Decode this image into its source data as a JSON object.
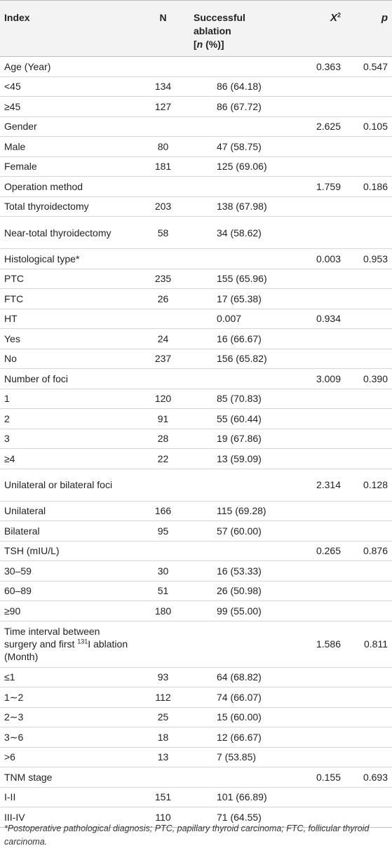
{
  "headers": {
    "index": "Index",
    "n": "N",
    "success_l1": "Successful",
    "success_l2": "ablation",
    "success_l3_open": "[",
    "success_l3_n": "n",
    "success_l3_close": " (%)]",
    "chi_sym": "X",
    "chi_sup": "2",
    "p": "p"
  },
  "rows": [
    {
      "label": "Age (Year)",
      "n": "",
      "success": "",
      "chi": "0.363",
      "p": "0.547"
    },
    {
      "label": "<45",
      "n": "134",
      "success": "86 (64.18)",
      "chi": "",
      "p": ""
    },
    {
      "label": "≥45",
      "n": "127",
      "success": "86 (67.72)",
      "chi": "",
      "p": ""
    },
    {
      "label": "Gender",
      "n": "",
      "success": "",
      "chi": "2.625",
      "p": "0.105"
    },
    {
      "label": "Male",
      "n": "80",
      "success": "47 (58.75)",
      "chi": "",
      "p": ""
    },
    {
      "label": "Female",
      "n": "181",
      "success": "125 (69.06)",
      "chi": "",
      "p": ""
    },
    {
      "label": "Operation method",
      "n": "",
      "success": "",
      "chi": "1.759",
      "p": "0.186"
    },
    {
      "label": "Total thyroidectomy",
      "n": "203",
      "success": "138 (67.98)",
      "chi": "",
      "p": ""
    },
    {
      "label": "Near-total thyroidectomy",
      "n": "58",
      "success": "34 (58.62)",
      "chi": "",
      "p": ""
    },
    {
      "label": "Histological type*",
      "n": "",
      "success": "",
      "chi": "0.003",
      "p": "0.953"
    },
    {
      "label": "PTC",
      "n": "235",
      "success": "155 (65.96)",
      "chi": "",
      "p": ""
    },
    {
      "label": "FTC",
      "n": "26",
      "success": "17 (65.38)",
      "chi": "",
      "p": ""
    },
    {
      "label": "HT",
      "n": "",
      "success": "0.007",
      "chi": "0.934",
      "p": ""
    },
    {
      "label": "Yes",
      "n": "24",
      "success": "16 (66.67)",
      "chi": "",
      "p": ""
    },
    {
      "label": "No",
      "n": "237",
      "success": "156 (65.82)",
      "chi": "",
      "p": ""
    },
    {
      "label": "Number of foci",
      "n": "",
      "success": "",
      "chi": "3.009",
      "p": "0.390"
    },
    {
      "label": "1",
      "n": "120",
      "success": "85 (70.83)",
      "chi": "",
      "p": ""
    },
    {
      "label": "2",
      "n": "91",
      "success": "55 (60.44)",
      "chi": "",
      "p": ""
    },
    {
      "label": "3",
      "n": "28",
      "success": "19 (67.86)",
      "chi": "",
      "p": ""
    },
    {
      "label": "≥4",
      "n": "22",
      "success": "13 (59.09)",
      "chi": "",
      "p": ""
    },
    {
      "label": "Unilateral or bilateral foci",
      "n": "",
      "success": "",
      "chi": "2.314",
      "p": "0.128"
    },
    {
      "label": "Unilateral",
      "n": "166",
      "success": "115 (69.28)",
      "chi": "",
      "p": ""
    },
    {
      "label": "Bilateral",
      "n": "95",
      "success": "57 (60.00)",
      "chi": "",
      "p": ""
    },
    {
      "label": "TSH (mIU/L)",
      "n": "",
      "success": "",
      "chi": "0.265",
      "p": "0.876"
    },
    {
      "label": "30–59",
      "n": "30",
      "success": "16 (53.33)",
      "chi": "",
      "p": ""
    },
    {
      "label": "60–89",
      "n": "51",
      "success": "26 (50.98)",
      "chi": "",
      "p": ""
    },
    {
      "label": "≥90",
      "n": "180",
      "success": "99 (55.00)",
      "chi": "",
      "p": ""
    },
    {
      "label_pre": "Time interval between surgery and first ",
      "label_sup": "131",
      "label_post": "I ablation (Month)",
      "n": "",
      "success": "",
      "chi": "1.586",
      "p": "0.811"
    },
    {
      "label": "≤1",
      "n": "93",
      "success": "64 (68.82)",
      "chi": "",
      "p": ""
    },
    {
      "label": "1∼2",
      "n": "112",
      "success": "74 (66.07)",
      "chi": "",
      "p": ""
    },
    {
      "label": "2∼3",
      "n": "25",
      "success": "15 (60.00)",
      "chi": "",
      "p": ""
    },
    {
      "label": "3∼6",
      "n": "18",
      "success": "12 (66.67)",
      "chi": "",
      "p": ""
    },
    {
      "label": ">6",
      "n": "13",
      "success": "7 (53.85)",
      "chi": "",
      "p": ""
    },
    {
      "label": "TNM stage",
      "n": "",
      "success": "",
      "chi": "0.155",
      "p": "0.693"
    },
    {
      "label": "I-II",
      "n": "151",
      "success": "101 (66.89)",
      "chi": "",
      "p": ""
    },
    {
      "label": "III-IV",
      "n": "110",
      "success": "71 (64.55)",
      "chi": "",
      "p": ""
    }
  ],
  "footnote": "*Postoperative pathological diagnosis; PTC, papillary thyroid carcinoma; FTC, follicular thyroid carcinoma."
}
